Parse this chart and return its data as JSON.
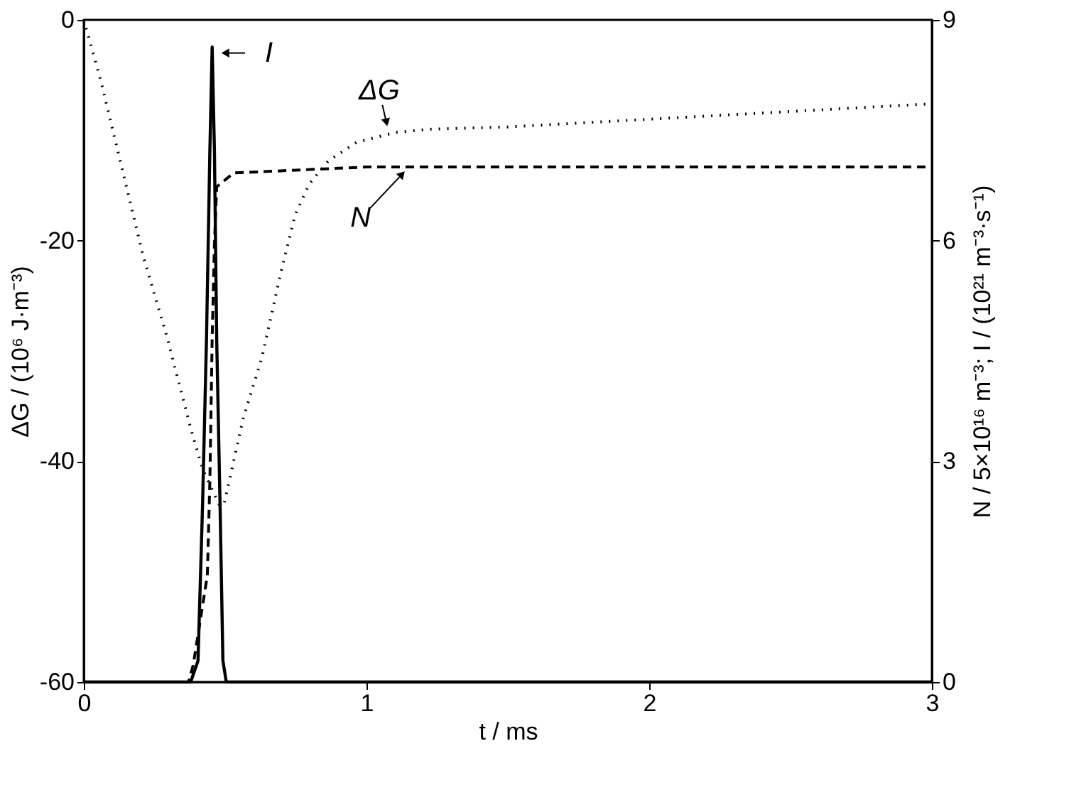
{
  "chart_data": {
    "type": "line",
    "xlabel": "t / ms",
    "ylabel": "ΔG / (10⁶ J·m⁻³)",
    "y2label": "N / 5×10¹⁶ m⁻³; I / (10²¹ m⁻³·s⁻¹)",
    "xlim": [
      0,
      3
    ],
    "xticks": [
      0,
      1,
      2,
      3
    ],
    "ylim": [
      -60,
      0
    ],
    "yticks": [
      -60,
      -40,
      -20,
      0
    ],
    "y2lim": [
      0,
      9
    ],
    "y2ticks": [
      0,
      3,
      6,
      9
    ],
    "grid": false,
    "marker": "none",
    "series": [
      {
        "color": "#000000",
        "line_style": "dotted",
        "x": [
          0,
          0.06,
          0.127,
          0.211,
          0.295,
          0.378,
          0.42,
          0.48,
          0.496,
          0.563,
          0.63,
          0.697,
          0.747,
          0.797,
          0.864,
          0.965,
          1.1,
          1.23,
          1.5,
          2.0,
          2.5,
          3.0
        ],
        "values": [
          0,
          -5.5,
          -12.6,
          -21.5,
          -28.8,
          -37.0,
          -40.7,
          -44.0,
          -43.9,
          -36.2,
          -30.6,
          -22.9,
          -17.7,
          -14.9,
          -12.8,
          -11.1,
          -10.2,
          -9.9,
          -9.7,
          -9.0,
          -8.3,
          -7.6
        ]
      },
      {
        "color": "#000000",
        "line_style": "dashed",
        "axis": "y2",
        "x": [
          0,
          0.37,
          0.387,
          0.437,
          0.446,
          0.454,
          0.462,
          0.47,
          0.53,
          1.0,
          2.0,
          3.0
        ],
        "values": [
          0,
          0,
          0.23,
          1.45,
          2.74,
          4.67,
          5.95,
          6.73,
          6.92,
          7.0,
          7.0,
          7.0
        ]
      },
      {
        "color": "#000000",
        "line_style": "solid",
        "axis": "y2",
        "x": [
          0,
          0.378,
          0.404,
          0.42,
          0.434,
          0.446,
          0.454,
          0.462,
          0.47,
          0.482,
          0.492,
          0.504,
          3.0
        ],
        "values": [
          0,
          0,
          0.29,
          2.4,
          4.67,
          7.24,
          8.63,
          7.24,
          4.67,
          2.4,
          0.29,
          0,
          0
        ]
      }
    ],
    "annotations": [
      {
        "text": "I",
        "x": 0.48,
        "y": -3.0
      },
      {
        "text": "ΔG",
        "x": 1.075,
        "y": -9.8
      },
      {
        "text": "N",
        "x": 1.14,
        "y": -13.6
      }
    ]
  }
}
